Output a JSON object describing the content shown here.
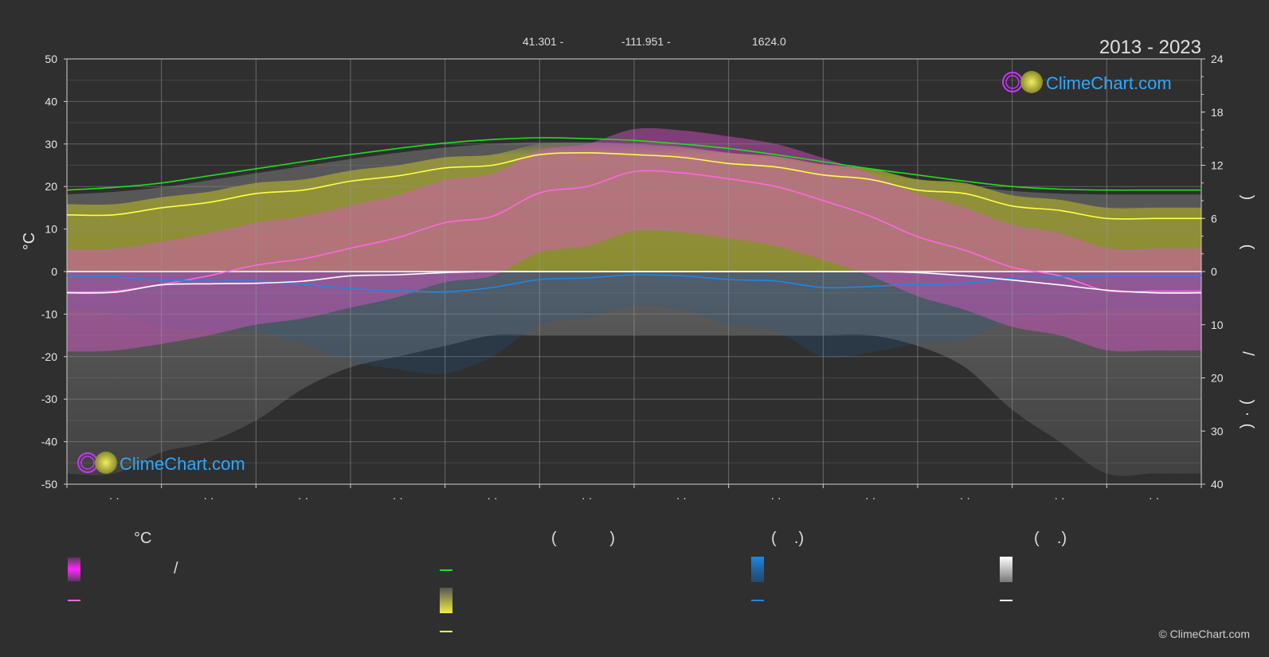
{
  "header": {
    "lat": "41.301 -",
    "lon": "-111.951 -",
    "elev": "1624.0",
    "years": "2013 - 2023"
  },
  "brand": {
    "logo_text": "ClimeChart.com",
    "copyright": "© ClimeChart.com"
  },
  "axis_labels": {
    "y_left": "°C",
    "right_top_a": ")",
    "right_top_b": "(",
    "right_bottom_a": "/",
    "right_bottom_b": ")",
    "right_bottom_c": "(",
    "right_bottom_dot": "·"
  },
  "legend": {
    "temp_unit": "°C",
    "slash": "/",
    "sun_header": "(            )",
    "rain_header": "(    .)",
    "snow_header": "(    .)"
  },
  "colors": {
    "background": "#2f2f2f",
    "daylight": "#22dd22",
    "sunshine": "#ffff44",
    "sunshine_area": "#b8b836",
    "temp_mean": "#ff66e0",
    "temp_range": "#dd33dd",
    "rain": "#1e88e5",
    "snow": "#ffffff",
    "logo": "#2ea8ff"
  },
  "chart_data": {
    "type": "area",
    "y_left_ticks": [
      "50",
      "40",
      "30",
      "20",
      "10",
      "0",
      "-10",
      "-20",
      "-30",
      "-40",
      "-50"
    ],
    "y_left_lim": [
      -50,
      50
    ],
    "y_right_top_ticks": [
      "24",
      "18",
      "12",
      "6",
      "0"
    ],
    "y_right_top_lim": [
      0,
      24
    ],
    "y_right_bottom_ticks": [
      "10",
      "20",
      "30",
      "40"
    ],
    "y_right_bottom_lim": [
      0,
      40
    ],
    "x_tick_labels": [
      "· ·",
      "· ·",
      "· ·",
      "· ·",
      "· ·",
      "· ·",
      "· ·",
      "· ·",
      "· ·",
      "· ·",
      "· ·",
      "· ·"
    ],
    "x_points": [
      0,
      0.5,
      1,
      1.5,
      2,
      2.5,
      3,
      3.5,
      4,
      4.5,
      5,
      5.5,
      6,
      6.5,
      7,
      7.5,
      8,
      8.5,
      9,
      9.5,
      10,
      10.5,
      11,
      11.5,
      12
    ],
    "series": [
      {
        "values": [
          9.2,
          9.5,
          10.0,
          10.8,
          11.6,
          12.4,
          13.2,
          13.9,
          14.5,
          14.9,
          15.1,
          15.0,
          14.8,
          14.4,
          13.9,
          13.2,
          12.4,
          11.6,
          10.9,
          10.2,
          9.6,
          9.3,
          9.2,
          9.2,
          9.2
        ],
        "axis": "right_top_hours"
      },
      {
        "values": [
          6.4,
          6.4,
          7.2,
          7.8,
          8.8,
          9.2,
          10.2,
          10.8,
          11.7,
          12.0,
          13.2,
          13.4,
          13.2,
          12.9,
          12.2,
          11.8,
          10.9,
          10.4,
          9.2,
          8.8,
          7.4,
          6.9,
          6.0,
          6.0,
          6.0
        ],
        "axis": "right_top_hours"
      },
      {
        "values": [
          -4.8,
          -4.6,
          -3.0,
          -1.0,
          1.5,
          3.0,
          5.5,
          8.0,
          11.5,
          13.0,
          18.5,
          20.0,
          23.5,
          23.2,
          21.8,
          20.0,
          16.7,
          13.0,
          8.2,
          5.0,
          1.0,
          -1.0,
          -4.5,
          -4.6,
          -4.6
        ],
        "axis": "left_celsius"
      },
      {
        "values": [
          0.8,
          1.0,
          1.6,
          1.8,
          1.8,
          2.4,
          3.2,
          3.6,
          3.8,
          3.0,
          1.5,
          1.2,
          0.6,
          0.8,
          1.5,
          1.8,
          3.0,
          2.8,
          2.4,
          2.2,
          1.2,
          1.0,
          0.8,
          0.8,
          0.8
        ],
        "axis": "right_bottom_mm"
      },
      {
        "values": [
          4.0,
          3.9,
          2.5,
          2.3,
          2.2,
          1.8,
          0.8,
          0.6,
          0.2,
          0.0,
          0.0,
          0.0,
          0.0,
          0.0,
          0.0,
          0.0,
          0.0,
          0.0,
          0.2,
          0.8,
          1.6,
          2.5,
          3.5,
          4.0,
          4.0
        ],
        "axis": "right_bottom_mm"
      }
    ]
  }
}
